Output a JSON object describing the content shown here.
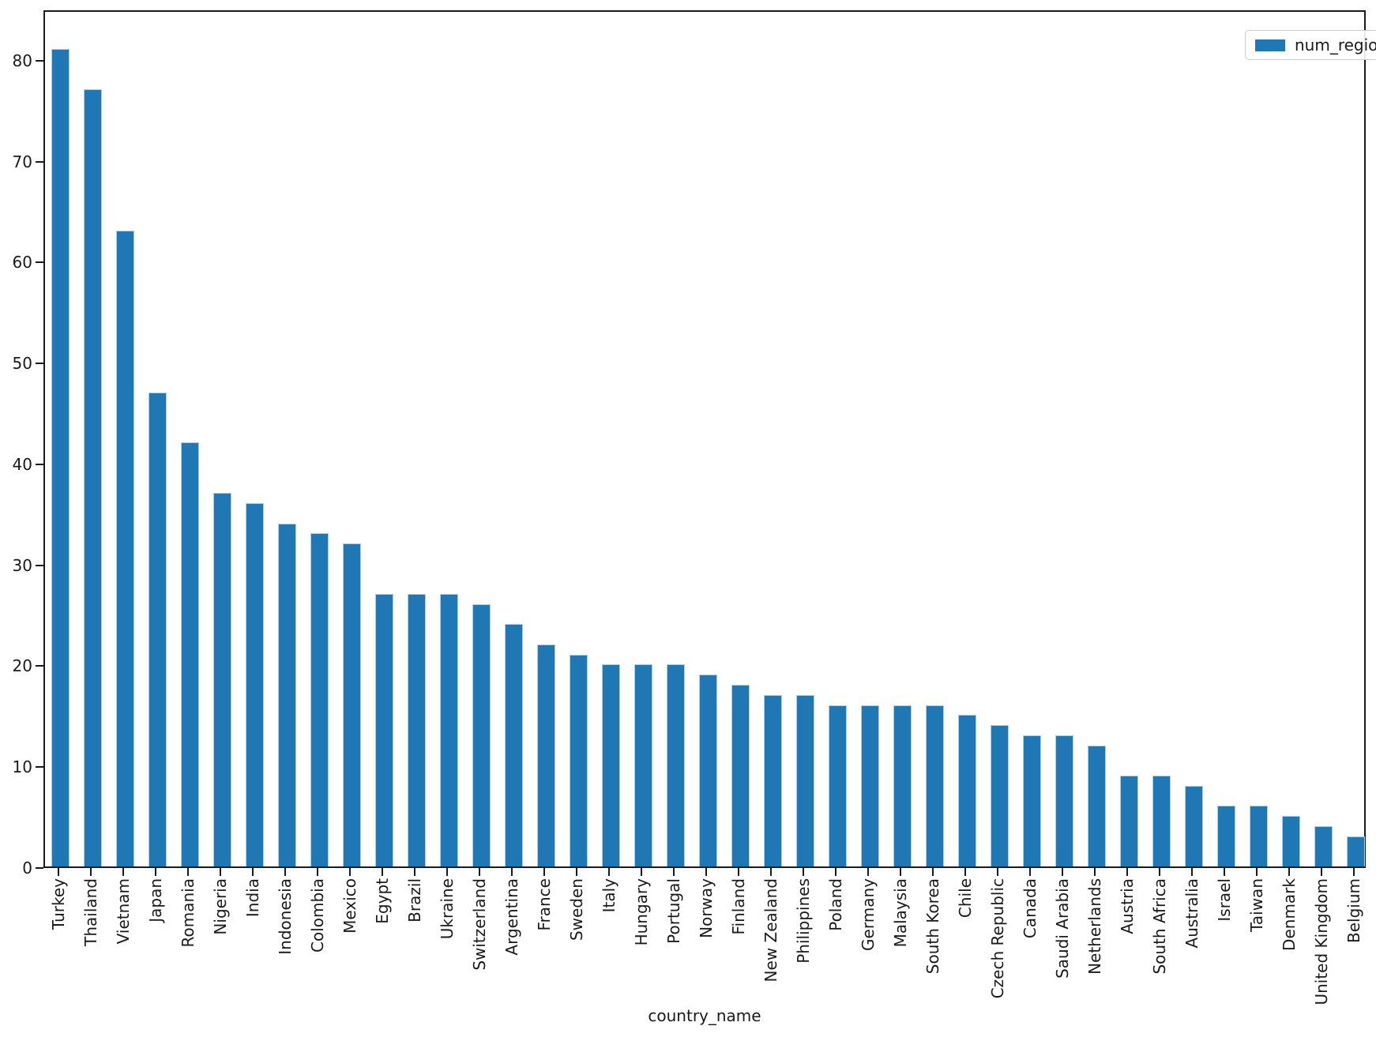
{
  "chart_data": {
    "type": "bar",
    "title": "",
    "xlabel": "country_name",
    "ylabel": "",
    "legend": {
      "label": "num_regions",
      "position": "upper right"
    },
    "bar_color": "#1f77b4",
    "grid": false,
    "ylim": [
      0,
      85
    ],
    "yticks": [
      0,
      10,
      20,
      30,
      40,
      50,
      60,
      70,
      80
    ],
    "categories": [
      "Turkey",
      "Thailand",
      "Vietnam",
      "Japan",
      "Romania",
      "Nigeria",
      "India",
      "Indonesia",
      "Colombia",
      "Mexico",
      "Egypt",
      "Brazil",
      "Ukraine",
      "Switzerland",
      "Argentina",
      "France",
      "Sweden",
      "Italy",
      "Hungary",
      "Portugal",
      "Norway",
      "Finland",
      "New Zealand",
      "Philippines",
      "Poland",
      "Germany",
      "Malaysia",
      "South Korea",
      "Chile",
      "Czech Republic",
      "Canada",
      "Saudi Arabia",
      "Netherlands",
      "Austria",
      "South Africa",
      "Australia",
      "Israel",
      "Taiwan",
      "Denmark",
      "United Kingdom",
      "Belgium"
    ],
    "values": [
      81,
      77,
      63,
      47,
      42,
      37,
      36,
      34,
      33,
      32,
      27,
      27,
      27,
      26,
      24,
      22,
      21,
      20,
      20,
      20,
      19,
      18,
      17,
      17,
      16,
      16,
      16,
      16,
      15,
      14,
      13,
      13,
      12,
      9,
      9,
      8,
      6,
      6,
      5,
      4,
      3
    ]
  }
}
